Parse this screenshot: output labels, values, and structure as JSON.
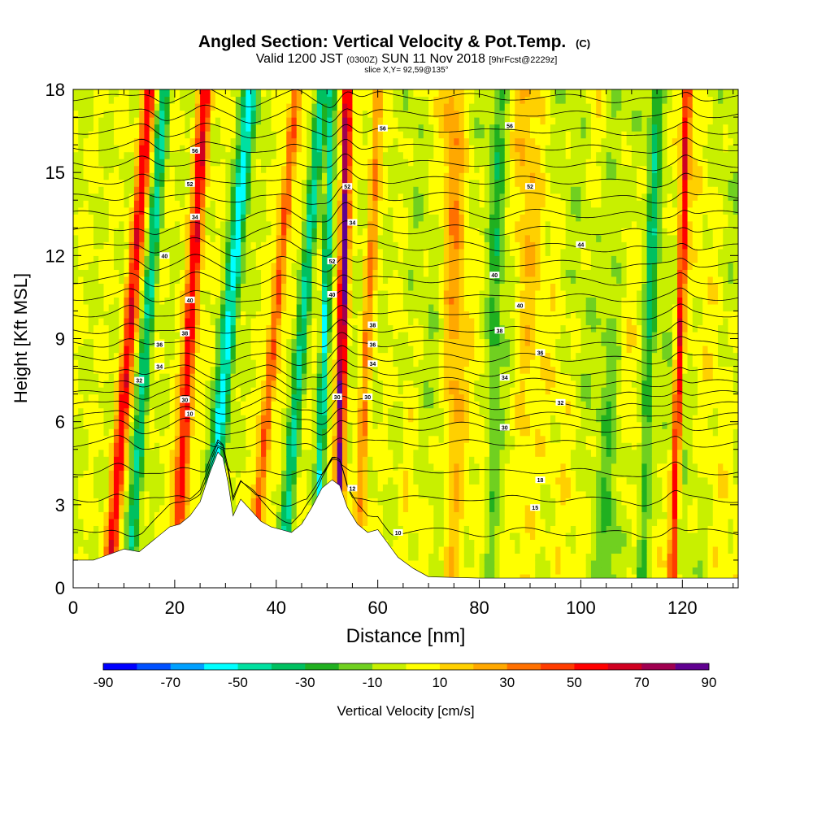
{
  "chart_data": {
    "type": "heatmap",
    "title": "Angled Section: Vertical Velocity & Pot.Temp.",
    "title_suffix": "(C)",
    "subtitle_parts": [
      "Valid 1200 JST ",
      "(0300Z)",
      " SUN 11 Nov 2018 ",
      "[9hrFcst@2229z]"
    ],
    "slice_label": "slice X,Y= 92,59@135°",
    "xlabel": "Distance [nm]",
    "ylabel": "Height [Kft MSL]",
    "xlim": [
      0,
      131
    ],
    "ylim": [
      0,
      18
    ],
    "x_ticks": [
      0,
      20,
      40,
      60,
      80,
      100,
      120
    ],
    "y_ticks": [
      0,
      3,
      6,
      9,
      12,
      15,
      18
    ],
    "colorbar": {
      "label": "Vertical Velocity [cm/s]",
      "tick_labels": [
        "-90",
        "-70",
        "-50",
        "-30",
        "-10",
        "10",
        "30",
        "50",
        "70",
        "90"
      ],
      "min": -90,
      "max": 90,
      "colors": [
        "#0000ff",
        "#0050ff",
        "#00a0ff",
        "#00ffff",
        "#00e0a0",
        "#00c060",
        "#20b020",
        "#70d020",
        "#c8f000",
        "#ffff00",
        "#ffd000",
        "#ffa800",
        "#ff7000",
        "#ff3c00",
        "#ff0000",
        "#d00020",
        "#a00050",
        "#600090"
      ]
    },
    "terrain": [
      [
        0,
        1.0
      ],
      [
        4,
        1.0
      ],
      [
        7,
        1.2
      ],
      [
        10,
        1.4
      ],
      [
        13,
        1.3
      ],
      [
        15,
        1.6
      ],
      [
        17,
        1.9
      ],
      [
        19,
        2.2
      ],
      [
        21,
        2.3
      ],
      [
        23,
        2.6
      ],
      [
        25,
        3.1
      ],
      [
        27,
        4.2
      ],
      [
        28.5,
        4.9
      ],
      [
        29.5,
        4.7
      ],
      [
        30.5,
        3.8
      ],
      [
        31.5,
        2.6
      ],
      [
        33,
        3.2
      ],
      [
        35,
        2.8
      ],
      [
        37,
        2.4
      ],
      [
        39,
        2.2
      ],
      [
        41,
        2.1
      ],
      [
        43,
        2.0
      ],
      [
        45,
        2.3
      ],
      [
        47,
        2.9
      ],
      [
        49,
        3.6
      ],
      [
        51,
        3.9
      ],
      [
        52.5,
        3.7
      ],
      [
        54,
        2.9
      ],
      [
        56,
        2.3
      ],
      [
        58,
        2.0
      ],
      [
        60,
        2.1
      ],
      [
        62,
        1.6
      ],
      [
        64,
        1.1
      ],
      [
        67,
        0.7
      ],
      [
        70,
        0.4
      ],
      [
        80,
        0.35
      ],
      [
        100,
        0.35
      ],
      [
        131,
        0.35
      ]
    ],
    "updrafts": [
      {
        "x0": 7,
        "x1": 15,
        "w": 1.3,
        "v": 55
      },
      {
        "x0": 20,
        "x1": 26,
        "w": 1.3,
        "v": 60
      },
      {
        "x0": 35,
        "x1": 44,
        "w": 1.1,
        "v": 45
      },
      {
        "x0": 52,
        "x1": 54,
        "w": 0.9,
        "v": 85
      },
      {
        "x0": 56,
        "x1": 60,
        "w": 1.0,
        "v": 30
      },
      {
        "x0": 118,
        "x1": 121,
        "w": 0.8,
        "v": 60
      },
      {
        "x0": 75,
        "x1": 75,
        "w": 2.0,
        "v": 22
      },
      {
        "x0": 89,
        "x1": 89,
        "w": 2.5,
        "v": 15
      }
    ],
    "downdrafts": [
      {
        "x0": 11,
        "x1": 18,
        "w": 1.2,
        "v": -40
      },
      {
        "x0": 26,
        "x1": 35,
        "w": 1.5,
        "v": -55
      },
      {
        "x0": 41,
        "x1": 49,
        "w": 1.2,
        "v": -40
      },
      {
        "x0": 48,
        "x1": 51,
        "w": 0.8,
        "v": -50
      },
      {
        "x0": 112,
        "x1": 115,
        "w": 1.2,
        "v": -30
      },
      {
        "x0": 82,
        "x1": 84,
        "w": 1.5,
        "v": -20
      },
      {
        "x0": 105,
        "x1": 107,
        "w": 2.0,
        "v": -15
      }
    ],
    "isentrope_levels": [
      2,
      3.2,
      4.2,
      5.2,
      5.8,
      6.2,
      6.6,
      7.0,
      7.4,
      7.8,
      8.3,
      8.8,
      9.3,
      9.9,
      10.5,
      11.1,
      11.7,
      12.3,
      12.9,
      13.5,
      14.1,
      14.7,
      15.3,
      15.9,
      16.5,
      17.1,
      17.7
    ],
    "isentrope_labels": [
      {
        "x": 24,
        "y": 15.8,
        "text": "56"
      },
      {
        "x": 23,
        "y": 14.6,
        "text": "52"
      },
      {
        "x": 24,
        "y": 13.4,
        "text": "34"
      },
      {
        "x": 18,
        "y": 12.0,
        "text": "40"
      },
      {
        "x": 23,
        "y": 10.4,
        "text": "40"
      },
      {
        "x": 22,
        "y": 9.2,
        "text": "38"
      },
      {
        "x": 17,
        "y": 8.8,
        "text": "36"
      },
      {
        "x": 17,
        "y": 8.0,
        "text": "34"
      },
      {
        "x": 13,
        "y": 7.5,
        "text": "32"
      },
      {
        "x": 22,
        "y": 6.8,
        "text": "30"
      },
      {
        "x": 23,
        "y": 6.3,
        "text": "10"
      },
      {
        "x": 61,
        "y": 16.6,
        "text": "56"
      },
      {
        "x": 54,
        "y": 14.5,
        "text": "52"
      },
      {
        "x": 55,
        "y": 13.2,
        "text": "34"
      },
      {
        "x": 51,
        "y": 11.8,
        "text": "52"
      },
      {
        "x": 51,
        "y": 10.6,
        "text": "40"
      },
      {
        "x": 59,
        "y": 9.5,
        "text": "38"
      },
      {
        "x": 59,
        "y": 8.8,
        "text": "36"
      },
      {
        "x": 59,
        "y": 8.1,
        "text": "34"
      },
      {
        "x": 58,
        "y": 6.9,
        "text": "30"
      },
      {
        "x": 52,
        "y": 6.9,
        "text": "30"
      },
      {
        "x": 55,
        "y": 3.6,
        "text": "12"
      },
      {
        "x": 64,
        "y": 2.0,
        "text": "10"
      },
      {
        "x": 86,
        "y": 16.7,
        "text": "56"
      },
      {
        "x": 90,
        "y": 14.5,
        "text": "52"
      },
      {
        "x": 100,
        "y": 12.4,
        "text": "44"
      },
      {
        "x": 83,
        "y": 11.3,
        "text": "40"
      },
      {
        "x": 88,
        "y": 10.2,
        "text": "40"
      },
      {
        "x": 84,
        "y": 9.3,
        "text": "38"
      },
      {
        "x": 92,
        "y": 8.5,
        "text": "36"
      },
      {
        "x": 85,
        "y": 7.6,
        "text": "34"
      },
      {
        "x": 96,
        "y": 6.7,
        "text": "32"
      },
      {
        "x": 85,
        "y": 5.8,
        "text": "30"
      },
      {
        "x": 92,
        "y": 3.9,
        "text": "18"
      },
      {
        "x": 91,
        "y": 2.9,
        "text": "15"
      }
    ]
  }
}
